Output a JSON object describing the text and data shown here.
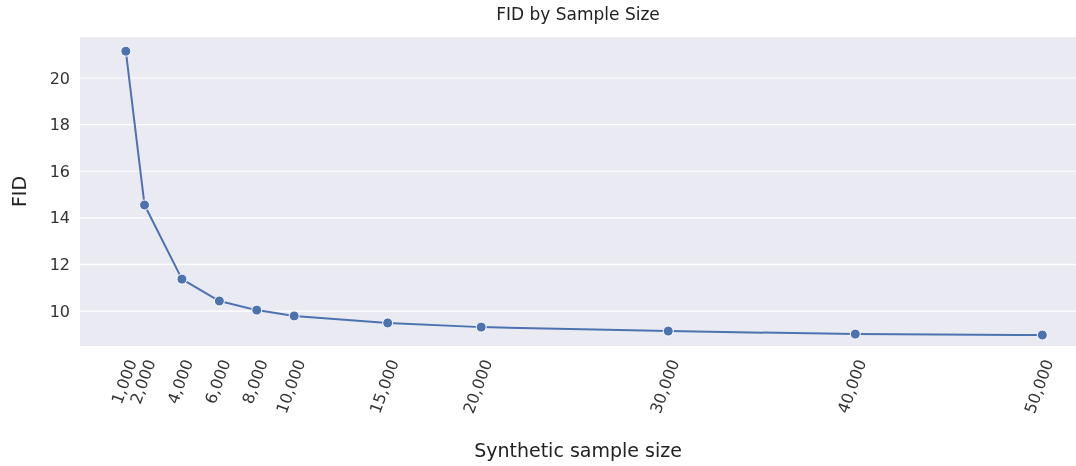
{
  "chart_data": {
    "type": "line",
    "title": "FID by Sample Size",
    "xlabel": "Synthetic sample size",
    "ylabel": "FID",
    "x": [
      1000,
      2000,
      4000,
      6000,
      8000,
      10000,
      15000,
      20000,
      30000,
      40000,
      50000
    ],
    "series": [
      {
        "color": "#4c72b0",
        "values": [
          21.15,
          14.55,
          11.37,
          10.43,
          10.04,
          9.79,
          9.49,
          9.31,
          9.14,
          9.01,
          8.97
        ]
      }
    ],
    "xlim": [
      -1450,
      51800
    ],
    "xticks": [
      {
        "value": 1000,
        "label": "1,000"
      },
      {
        "value": 2000,
        "label": "2,000"
      },
      {
        "value": 4000,
        "label": "4,000"
      },
      {
        "value": 6000,
        "label": "6,000"
      },
      {
        "value": 8000,
        "label": "8,000"
      },
      {
        "value": 10000,
        "label": "10,000"
      },
      {
        "value": 15000,
        "label": "15,000"
      },
      {
        "value": 20000,
        "label": "20,000"
      },
      {
        "value": 30000,
        "label": "30,000"
      },
      {
        "value": 40000,
        "label": "40,000"
      },
      {
        "value": 50000,
        "label": "50,000"
      }
    ],
    "ylim": [
      8.5,
      21.76
    ],
    "yticks": [
      10,
      12,
      14,
      16,
      18,
      20
    ],
    "grid": "y",
    "marker": "circle",
    "line_style": "solid"
  }
}
